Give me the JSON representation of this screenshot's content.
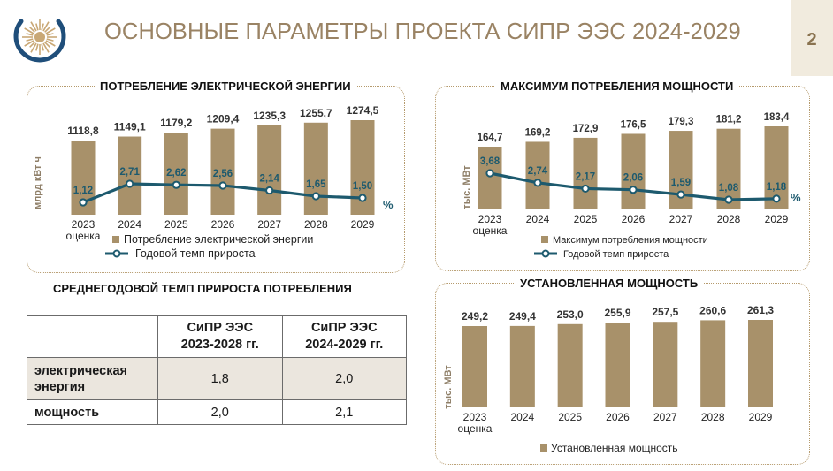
{
  "header": {
    "title": "ОСНОВНЫЕ ПАРАМЕТРЫ ПРОЕКТА СИПР ЭЭС 2024-2029",
    "page_number": "2"
  },
  "colors": {
    "bar": "#a8916a",
    "line": "#1d5a6e",
    "title": "#9a8364",
    "table_header_shade": "#ebe6de"
  },
  "chart_data": [
    {
      "id": "energy",
      "type": "bar",
      "title": "ПОТРЕБЛЕНИЕ ЭЛЕКТРИЧЕСКОЙ ЭНЕРГИИ",
      "ylabel": "млрд кВт ч",
      "categories": [
        "2023",
        "2024",
        "2025",
        "2026",
        "2027",
        "2028",
        "2029"
      ],
      "category_sublabels": [
        "оценка",
        "",
        "",
        "",
        "",
        "",
        ""
      ],
      "series": [
        {
          "name": "Потребление электрической энергии",
          "kind": "bar",
          "values": [
            1118.8,
            1149.1,
            1179.2,
            1209.4,
            1235.3,
            1255.7,
            1274.5
          ]
        },
        {
          "name": "Годовой темп прироста",
          "kind": "line",
          "values": [
            1.12,
            2.71,
            2.62,
            2.56,
            2.14,
            1.65,
            1.5
          ]
        }
      ],
      "value_labels": [
        "1118,8",
        "1149,1",
        "1179,2",
        "1209,4",
        "1235,3",
        "1255,7",
        "1274,5"
      ],
      "line_labels": [
        "1,12",
        "2,71",
        "2,62",
        "2,56",
        "2,14",
        "1,65",
        "1,50"
      ],
      "line_unit": "%",
      "legend": [
        "Потребление электрической энергии",
        "Годовой темп прироста"
      ],
      "legend_position": "bottom-left"
    },
    {
      "id": "peak",
      "type": "bar",
      "title": "МАКСИМУМ ПОТРЕБЛЕНИЯ МОЩНОСТИ",
      "ylabel": "тыс. МВт",
      "categories": [
        "2023",
        "2024",
        "2025",
        "2026",
        "2027",
        "2028",
        "2029"
      ],
      "category_sublabels": [
        "оценка",
        "",
        "",
        "",
        "",
        "",
        ""
      ],
      "series": [
        {
          "name": "Максимум потребления мощности",
          "kind": "bar",
          "values": [
            164.7,
            169.2,
            172.9,
            176.5,
            179.3,
            181.2,
            183.4
          ]
        },
        {
          "name": "Годовой темп прироста",
          "kind": "line",
          "values": [
            3.68,
            2.74,
            2.17,
            2.06,
            1.59,
            1.08,
            1.18
          ]
        }
      ],
      "value_labels": [
        "164,7",
        "169,2",
        "172,9",
        "176,5",
        "179,3",
        "181,2",
        "183,4"
      ],
      "line_labels": [
        "3,68",
        "2,74",
        "2,17",
        "2,06",
        "1,59",
        "1,08",
        "1,18"
      ],
      "line_unit": "%",
      "legend": [
        "Максимум потребления мощности",
        "Годовой темп прироста"
      ],
      "legend_position": "bottom"
    },
    {
      "id": "capacity",
      "type": "bar",
      "title": "УСТАНОВЛЕННАЯ МОЩНОСТЬ",
      "ylabel": "тыс. МВт",
      "categories": [
        "2023",
        "2024",
        "2025",
        "2026",
        "2027",
        "2028",
        "2029"
      ],
      "category_sublabels": [
        "оценка",
        "",
        "",
        "",
        "",
        "",
        ""
      ],
      "series": [
        {
          "name": "Установленная мощность",
          "kind": "bar",
          "values": [
            249.2,
            249.4,
            253.0,
            255.9,
            257.5,
            260.6,
            261.3
          ]
        }
      ],
      "value_labels": [
        "249,2",
        "249,4",
        "253,0",
        "255,9",
        "257,5",
        "260,6",
        "261,3"
      ],
      "legend": [
        "Установленная мощность"
      ],
      "legend_position": "bottom"
    }
  ],
  "growth_table": {
    "title": "СРЕДНЕГОДОВОЙ ТЕМП ПРИРОСТА ПОТРЕБЛЕНИЯ",
    "columns": [
      {
        "line1": "СиПР ЭЭС",
        "line2": "2023-2028 гг."
      },
      {
        "line1": "СиПР ЭЭС",
        "line2": "2024-2029 гг."
      }
    ],
    "rows": [
      {
        "label_line1": "электрическая",
        "label_line2": "энергия",
        "values": [
          "1,8",
          "2,0"
        ]
      },
      {
        "label_line1": "мощность",
        "label_line2": "",
        "values": [
          "2,0",
          "2,1"
        ]
      }
    ]
  }
}
